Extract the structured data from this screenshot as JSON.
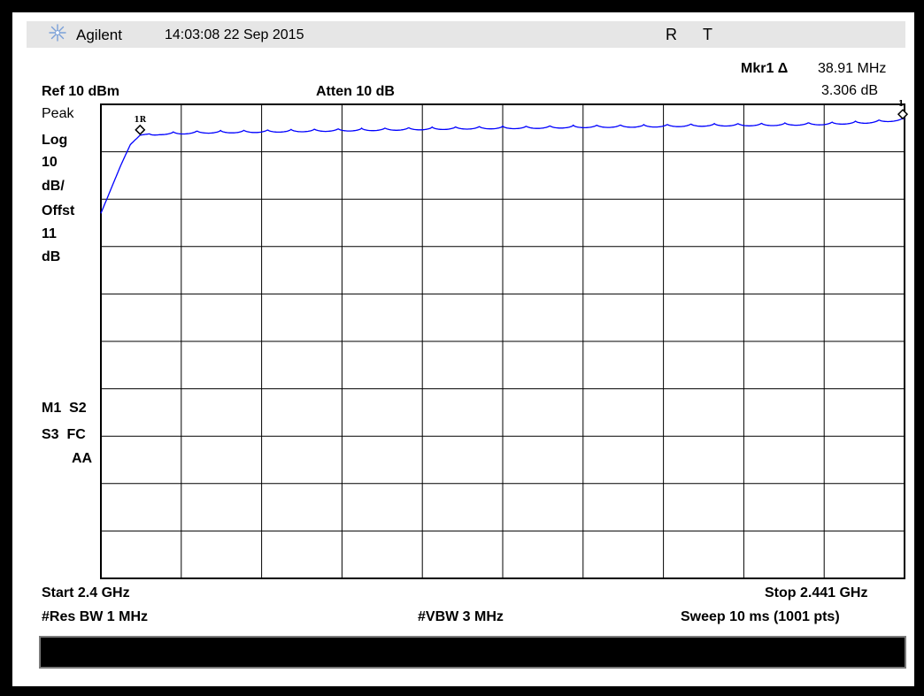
{
  "header": {
    "brand": "Agilent",
    "timestamp": "14:03:08 22 Sep 2015",
    "status_r": "R",
    "status_t": "T"
  },
  "marker": {
    "label": "Mkr1 Δ",
    "freq": "38.91 MHz",
    "value": "3.306 dB"
  },
  "settings": {
    "ref": "Ref 10 dBm",
    "atten": "Atten 10 dB",
    "detector": "Peak",
    "scale_type": "Log",
    "scale_value": "10",
    "scale_unit": "dB/",
    "offset_label": "Offst",
    "offset_value": "11",
    "offset_unit": "dB",
    "status1": "M1  S2",
    "status2": "S3  FC",
    "status3": "AA"
  },
  "footer": {
    "start": "Start 2.4 GHz",
    "stop": "Stop 2.441 GHz",
    "rbw": "#Res BW 1 MHz",
    "vbw": "#VBW 3 MHz",
    "sweep": "Sweep 10 ms (1001 pts)"
  },
  "chart_data": {
    "type": "line",
    "x_unit": "GHz",
    "y_unit": "dBm",
    "xlim": [
      2.4,
      2.441
    ],
    "ylim": [
      -90,
      10
    ],
    "grid": true,
    "series": [
      {
        "color": "#0000ff",
        "x": [
          2.4,
          2.4005,
          2.401,
          2.4015,
          2.402,
          2.4025,
          2.403,
          2.404,
          2.405,
          2.407,
          2.41,
          2.413,
          2.416,
          2.419,
          2.422,
          2.425,
          2.428,
          2.431,
          2.434,
          2.437,
          2.439,
          2.441
        ],
        "y": [
          -13,
          -8,
          -3,
          1.5,
          3.5,
          3.8,
          4.2,
          4.3,
          4.5,
          4.6,
          4.8,
          5.0,
          5.2,
          5.4,
          5.5,
          5.7,
          5.8,
          6.0,
          6.1,
          6.3,
          6.6,
          7.2
        ],
        "ripple_db": 0.6,
        "ripple_period_ghz": 0.0012
      }
    ],
    "markers": [
      {
        "label": "1R",
        "x": 2.402,
        "y": 3.5
      },
      {
        "label": "1",
        "x": 2.44091,
        "y": 6.8
      }
    ]
  }
}
